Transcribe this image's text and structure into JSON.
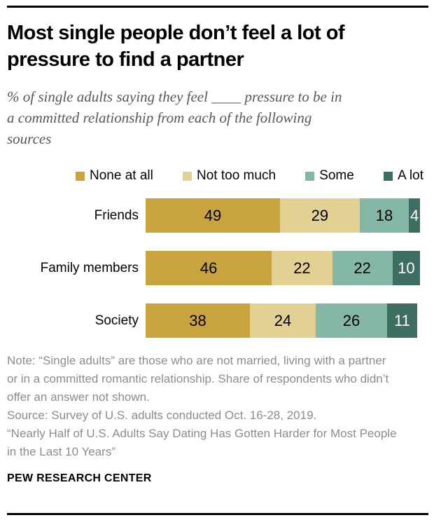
{
  "header": {
    "title_lines": [
      "Most single people don’t feel a lot of",
      "pressure to find a partner"
    ],
    "subtitle_lines": [
      "% of single adults saying they feel ____ pressure to be in",
      "a committed relationship from each of the following",
      "sources"
    ]
  },
  "chart_data": {
    "type": "bar",
    "orientation": "horizontal",
    "stacked": true,
    "unit": "%",
    "title": "Most single people don’t feel a lot of pressure to find a partner",
    "subtitle": "% of single adults saying they feel ____ pressure to be in a committed relationship from each of the following sources",
    "categories": [
      "Friends",
      "Family members",
      "Society"
    ],
    "series": [
      {
        "name": "None at all",
        "color": "#c9a33d",
        "text_color": "#000000",
        "values": [
          49,
          46,
          38
        ]
      },
      {
        "name": "Not too much",
        "color": "#e3d093",
        "text_color": "#000000",
        "values": [
          29,
          22,
          24
        ]
      },
      {
        "name": "Some",
        "color": "#84b7a6",
        "text_color": "#000000",
        "values": [
          18,
          22,
          26
        ]
      },
      {
        "name": "A lot",
        "color": "#3e6e63",
        "text_color": "#ffffff",
        "values": [
          4,
          10,
          11
        ]
      }
    ],
    "legend_position": "top",
    "xlim": [
      0,
      100
    ],
    "grid": false,
    "value_labels": "inside-center"
  },
  "notes": {
    "note": "Note: “Single adults” are those who are not married, living with a partner or in a committed romantic relationship. Share of respondents who didn’t offer an answer not shown.",
    "source": "Source: Survey of U.S. adults conducted Oct. 16-28, 2019.",
    "report_title": "“Nearly Half of U.S. Adults Say Dating Has Gotten Harder for Most People in the Last 10 Years”"
  },
  "footer": {
    "brand": "PEW RESEARCH CENTER"
  }
}
